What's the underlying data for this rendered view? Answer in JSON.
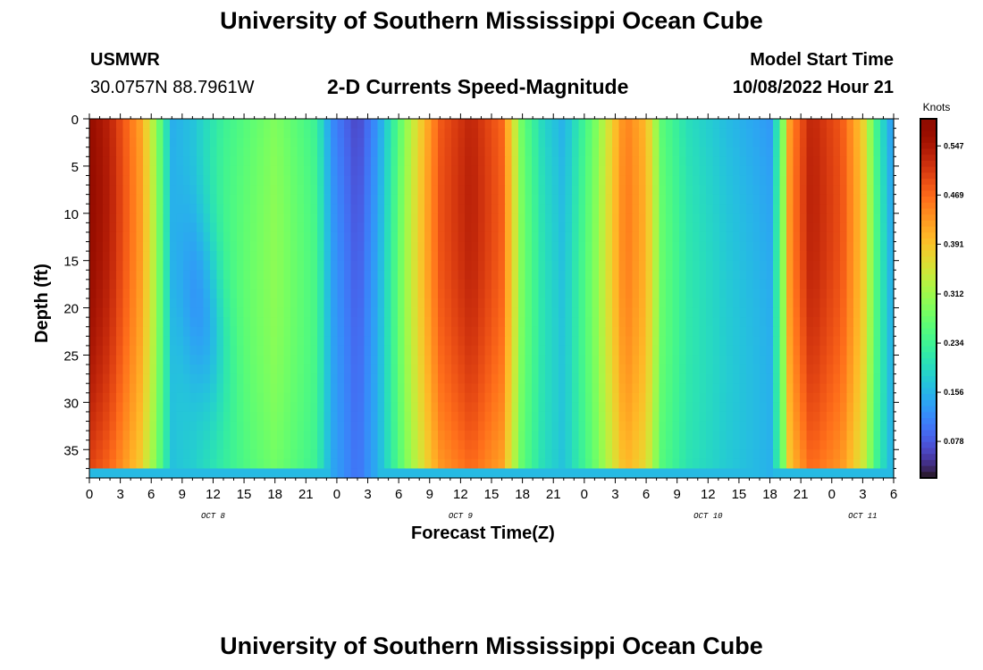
{
  "header": {
    "title_top": "University of Southern Mississippi Ocean Cube",
    "station": "USMWR",
    "coords": "30.0757N  88.7961W",
    "chart_title": "2-D Currents Speed-Magnitude",
    "model_label": "Model Start Time",
    "model_time": "10/08/2022 Hour 21",
    "title_bottom": "University of Southern Mississippi Ocean Cube"
  },
  "chart_data": {
    "type": "heatmap",
    "title": "2-D Currents Speed-Magnitude",
    "xlabel": "Forecast Time(Z)",
    "ylabel": "Depth (ft)",
    "x_ticks": [
      "0",
      "3",
      "6",
      "9",
      "12",
      "15",
      "18",
      "21",
      "0",
      "3",
      "6",
      "9",
      "12",
      "15",
      "18",
      "21",
      "0",
      "3",
      "6",
      "9",
      "12",
      "15",
      "18",
      "21",
      "0",
      "3",
      "6"
    ],
    "x_range_hours": [
      0,
      78
    ],
    "day_labels": [
      {
        "label": "OCT 8",
        "hour": 12
      },
      {
        "label": "OCT 9",
        "hour": 36
      },
      {
        "label": "OCT 10",
        "hour": 60
      },
      {
        "label": "OCT 11",
        "hour": 75
      }
    ],
    "y_ticks": [
      "0",
      "5",
      "10",
      "15",
      "20",
      "25",
      "30",
      "35"
    ],
    "y_tick_values": [
      0,
      5,
      10,
      15,
      20,
      25,
      30,
      35
    ],
    "y_range": [
      0,
      38
    ],
    "colorbar": {
      "label": "Knots",
      "ticks": [
        "0.547",
        "0.469",
        "0.391",
        "0.312",
        "0.234",
        "0.156",
        "0.078"
      ],
      "tick_values": [
        0.547,
        0.469,
        0.391,
        0.312,
        0.234,
        0.156,
        0.078
      ],
      "range": [
        0.02,
        0.59
      ]
    },
    "colormap": "turbo",
    "surface_speed_profile_knots": [
      {
        "hour": 0,
        "value": 0.57
      },
      {
        "hour": 2,
        "value": 0.53
      },
      {
        "hour": 5,
        "value": 0.42
      },
      {
        "hour": 6.5,
        "value": 0.3
      },
      {
        "hour": 8,
        "value": 0.15
      },
      {
        "hour": 10,
        "value": 0.17
      },
      {
        "hour": 13,
        "value": 0.23
      },
      {
        "hour": 18,
        "value": 0.29
      },
      {
        "hour": 22,
        "value": 0.23
      },
      {
        "hour": 23.5,
        "value": 0.12
      },
      {
        "hour": 26,
        "value": 0.06
      },
      {
        "hour": 28,
        "value": 0.13
      },
      {
        "hour": 31,
        "value": 0.32
      },
      {
        "hour": 34,
        "value": 0.48
      },
      {
        "hour": 37,
        "value": 0.53
      },
      {
        "hour": 40,
        "value": 0.47
      },
      {
        "hour": 42,
        "value": 0.27
      },
      {
        "hour": 44,
        "value": 0.19
      },
      {
        "hour": 46,
        "value": 0.15
      },
      {
        "hour": 49,
        "value": 0.28
      },
      {
        "hour": 52,
        "value": 0.45
      },
      {
        "hour": 54,
        "value": 0.4
      },
      {
        "hour": 55.5,
        "value": 0.26
      },
      {
        "hour": 58,
        "value": 0.2
      },
      {
        "hour": 62,
        "value": 0.16
      },
      {
        "hour": 66,
        "value": 0.13
      },
      {
        "hour": 67,
        "value": 0.24
      },
      {
        "hour": 68,
        "value": 0.44
      },
      {
        "hour": 70,
        "value": 0.53
      },
      {
        "hour": 73,
        "value": 0.48
      },
      {
        "hour": 75,
        "value": 0.38
      },
      {
        "hour": 76.5,
        "value": 0.22
      },
      {
        "hour": 78,
        "value": 0.12
      }
    ]
  }
}
